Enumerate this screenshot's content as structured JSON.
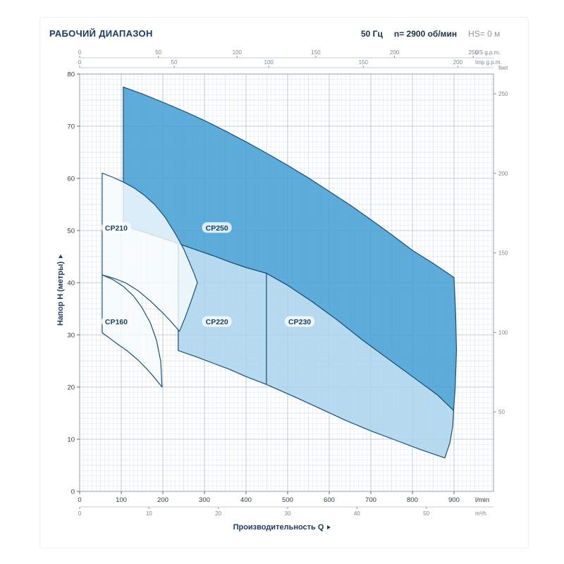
{
  "header": {
    "title": "РАБОЧИЙ ДИАПАЗОН",
    "frequency": "50 Гц",
    "speed": "n= 2900 об/мин",
    "suction": "HS= 0 м"
  },
  "chart_data": {
    "type": "area",
    "x_label": "Производительность Q",
    "x_axes": {
      "lmin": {
        "label": "l/min",
        "ticks": [
          0,
          100,
          200,
          300,
          400,
          500,
          600,
          700,
          800,
          900
        ],
        "max": 995
      },
      "m3h": {
        "label": "m³/h",
        "ticks": [
          0,
          10,
          20,
          30,
          40,
          50
        ],
        "lmin_per_unit": 16.667
      },
      "us_gpm": {
        "label": "US g.p.m.",
        "ticks": [
          0,
          50,
          100,
          150,
          200,
          250
        ],
        "lmin_per_unit": 3.785
      },
      "imp_gpm": {
        "label": "Imp g.p.m.",
        "ticks": [
          0,
          50,
          100,
          150,
          200
        ],
        "lmin_per_unit": 4.546
      }
    },
    "y_axes": {
      "meters": {
        "label": "Напор H (метры)",
        "ticks": [
          0,
          10,
          20,
          30,
          40,
          50,
          60,
          70,
          80
        ],
        "max": 80
      },
      "feet": {
        "label": "feet",
        "ticks": [
          50,
          100,
          150,
          200,
          250
        ],
        "m_per_unit": 0.3048
      }
    },
    "regions": [
      {
        "name": "CP250",
        "fill": "#47a0d5",
        "opacity": 0.88,
        "label_q": 330,
        "label_h": 50.5,
        "points": [
          [
            105,
            77.5
          ],
          [
            150,
            76.2
          ],
          [
            200,
            74.6
          ],
          [
            250,
            72.9
          ],
          [
            300,
            71.1
          ],
          [
            350,
            69.1
          ],
          [
            400,
            67.0
          ],
          [
            450,
            64.8
          ],
          [
            500,
            62.5
          ],
          [
            550,
            60.1
          ],
          [
            600,
            57.5
          ],
          [
            650,
            54.9
          ],
          [
            700,
            52.1
          ],
          [
            750,
            49.2
          ],
          [
            800,
            46.2
          ],
          [
            850,
            43.7
          ],
          [
            900,
            41.0
          ],
          [
            904,
            34.0
          ],
          [
            906,
            27.0
          ],
          [
            903,
            20.0
          ],
          [
            899,
            15.5
          ],
          [
            860,
            18.5
          ],
          [
            800,
            22.0
          ],
          [
            740,
            25.5
          ],
          [
            680,
            29.0
          ],
          [
            620,
            32.8
          ],
          [
            560,
            36.3
          ],
          [
            500,
            39.5
          ],
          [
            449,
            41.8
          ],
          [
            400,
            42.9
          ],
          [
            360,
            44.0
          ],
          [
            320,
            45.2
          ],
          [
            280,
            46.3
          ],
          [
            237,
            47.5
          ],
          [
            200,
            48.5
          ],
          [
            150,
            49.8
          ],
          [
            105,
            51.0
          ]
        ]
      },
      {
        "name": "CP230",
        "fill": "#a9d4ec",
        "opacity": 0.85,
        "label_q": 529,
        "label_h": 32.5,
        "points": [
          [
            449,
            41.8
          ],
          [
            500,
            39.5
          ],
          [
            560,
            36.3
          ],
          [
            620,
            32.8
          ],
          [
            680,
            29.0
          ],
          [
            740,
            25.5
          ],
          [
            800,
            22.0
          ],
          [
            860,
            18.5
          ],
          [
            899,
            15.5
          ],
          [
            897,
            12.5
          ],
          [
            890,
            9.3
          ],
          [
            878,
            6.4
          ],
          [
            820,
            8.0
          ],
          [
            760,
            9.8
          ],
          [
            700,
            11.6
          ],
          [
            640,
            13.6
          ],
          [
            580,
            15.8
          ],
          [
            520,
            18.0
          ],
          [
            449,
            20.5
          ]
        ]
      },
      {
        "name": "CP220",
        "fill": "#a9d4ec",
        "opacity": 0.85,
        "label_q": 330,
        "label_h": 32.5,
        "points": [
          [
            237,
            47.5
          ],
          [
            280,
            46.3
          ],
          [
            320,
            45.2
          ],
          [
            360,
            44.0
          ],
          [
            400,
            42.9
          ],
          [
            449,
            41.8
          ],
          [
            449,
            20.5
          ],
          [
            400,
            22.0
          ],
          [
            360,
            23.4
          ],
          [
            320,
            24.6
          ],
          [
            280,
            25.8
          ],
          [
            237,
            27.0
          ]
        ]
      },
      {
        "name": "CP210",
        "fill": "#f6fbfe",
        "opacity": 0.82,
        "label_q": 88,
        "label_h": 50.5,
        "points": [
          [
            54,
            41.5
          ],
          [
            54,
            61.0
          ],
          [
            80,
            60.2
          ],
          [
            105,
            59.3
          ],
          [
            130,
            58.2
          ],
          [
            155,
            56.8
          ],
          [
            180,
            55.0
          ],
          [
            205,
            52.6
          ],
          [
            230,
            49.4
          ],
          [
            250,
            46.5
          ],
          [
            265,
            43.7
          ],
          [
            275,
            41.8
          ],
          [
            283,
            40.0
          ],
          [
            268,
            36.5
          ],
          [
            254,
            33.4
          ],
          [
            240,
            30.7
          ],
          [
            220,
            32.5
          ],
          [
            200,
            34.2
          ],
          [
            170,
            36.5
          ],
          [
            140,
            38.5
          ],
          [
            110,
            40.0
          ],
          [
            80,
            40.9
          ]
        ]
      },
      {
        "name": "CP160",
        "fill": "#f6fbfe",
        "opacity": 0.82,
        "label_q": 88,
        "label_h": 32.5,
        "points": [
          [
            54,
            30.4
          ],
          [
            54,
            41.5
          ],
          [
            80,
            40.6
          ],
          [
            105,
            39.3
          ],
          [
            130,
            37.4
          ],
          [
            150,
            35.2
          ],
          [
            170,
            32.3
          ],
          [
            185,
            28.9
          ],
          [
            195,
            24.9
          ],
          [
            198,
            20.0
          ],
          [
            180,
            21.8
          ],
          [
            160,
            23.6
          ],
          [
            140,
            25.2
          ],
          [
            115,
            26.9
          ],
          [
            90,
            28.3
          ],
          [
            70,
            29.5
          ]
        ]
      }
    ]
  }
}
